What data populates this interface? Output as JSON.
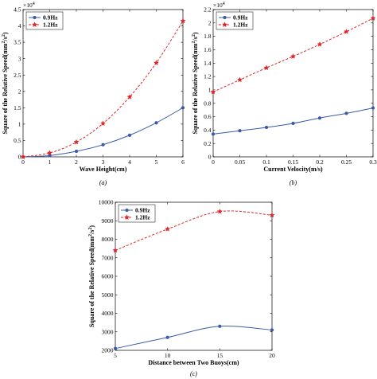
{
  "chart_data": [
    {
      "type": "line",
      "caption": "(a)",
      "xlabel": "Wave Height(cm)",
      "ylabel": "Square of the Relative Speed(mm²/s²)",
      "ylabel_main": "Square of the Relative Speed(mm",
      "ylabel_sup1": "2",
      "ylabel_mid": "/s",
      "ylabel_sup2": "2",
      "ylabel_end": ")",
      "multiplier_base": "×10",
      "multiplier_exp": "4",
      "xlim": [
        0,
        6
      ],
      "ylim": [
        0,
        4.5
      ],
      "xticks": [
        0,
        1,
        2,
        3,
        4,
        5,
        6
      ],
      "xtick_labels": [
        "0",
        "1",
        "2",
        "3",
        "4",
        "5",
        "6"
      ],
      "yticks": [
        0,
        0.5,
        1,
        1.5,
        2,
        2.5,
        3,
        3.5,
        4,
        4.5
      ],
      "ytick_labels": [
        "0",
        "0.5",
        "1",
        "1.5",
        "2",
        "2.5",
        "3",
        "3.5",
        "4",
        "4.5"
      ],
      "x": [
        0,
        1,
        2,
        3,
        4,
        5,
        6
      ],
      "legend_position": "top-left",
      "series": [
        {
          "name": "0.9Hz",
          "values": [
            0,
            0.04,
            0.17,
            0.37,
            0.66,
            1.04,
            1.5
          ],
          "color": "#3b5ba7",
          "marker": "dot",
          "dash": false
        },
        {
          "name": "1.2Hz",
          "values": [
            0,
            0.12,
            0.45,
            1.02,
            1.83,
            2.87,
            4.15
          ],
          "color": "#e0262a",
          "marker": "star",
          "dash": true
        }
      ]
    },
    {
      "type": "line",
      "caption": "(b)",
      "xlabel": "Current Velocity(m/s)",
      "ylabel": "Square of the Relative Speed(mm²/s²)",
      "ylabel_main": "Square of the Relative Speed(mm",
      "ylabel_sup1": "2",
      "ylabel_mid": "/s",
      "ylabel_sup2": "2",
      "ylabel_end": ")",
      "multiplier_base": "×10",
      "multiplier_exp": "4",
      "xlim": [
        0,
        0.3
      ],
      "ylim": [
        0,
        2.2
      ],
      "xticks": [
        0,
        0.05,
        0.1,
        0.15,
        0.2,
        0.25,
        0.3
      ],
      "xtick_labels": [
        "0",
        "0.05",
        "0.1",
        "0.15",
        "0.2",
        "0.25",
        "0.3"
      ],
      "yticks": [
        0,
        0.2,
        0.4,
        0.6,
        0.8,
        1,
        1.2,
        1.4,
        1.6,
        1.8,
        2,
        2.2
      ],
      "ytick_labels": [
        "0",
        "0.2",
        "0.4",
        "0.6",
        "0.8",
        "1",
        "1.2",
        "1.4",
        "1.6",
        "1.8",
        "2",
        "2.2"
      ],
      "x": [
        0,
        0.05,
        0.1,
        0.15,
        0.2,
        0.25,
        0.3
      ],
      "legend_position": "top-left",
      "series": [
        {
          "name": "0.9Hz",
          "values": [
            0.34,
            0.39,
            0.44,
            0.5,
            0.58,
            0.65,
            0.73
          ],
          "color": "#3b5ba7",
          "marker": "dot",
          "dash": false
        },
        {
          "name": "1.2Hz",
          "values": [
            0.97,
            1.15,
            1.33,
            1.5,
            1.68,
            1.87,
            2.07
          ],
          "color": "#e0262a",
          "marker": "star",
          "dash": true
        }
      ]
    },
    {
      "type": "line",
      "caption": "(c)",
      "xlabel": "Distance between Two Buoys(cm)",
      "ylabel": "Square of the Relative Speed(mm²/s²)",
      "ylabel_main": "Square of the Relative Speed(mm",
      "ylabel_sup1": "2",
      "ylabel_mid": "/s",
      "ylabel_sup2": "2",
      "ylabel_end": ")",
      "xlim": [
        5,
        20
      ],
      "ylim": [
        2000,
        10000
      ],
      "xticks": [
        5,
        10,
        15,
        20
      ],
      "xtick_labels": [
        "5",
        "10",
        "15",
        "20"
      ],
      "yticks": [
        2000,
        3000,
        4000,
        5000,
        6000,
        7000,
        8000,
        9000,
        10000
      ],
      "ytick_labels": [
        "2000",
        "3000",
        "4000",
        "5000",
        "6000",
        "7000",
        "8000",
        "9000",
        "10000"
      ],
      "x": [
        5,
        10,
        15,
        20
      ],
      "legend_position": "top-left",
      "series": [
        {
          "name": "0.9Hz",
          "values": [
            2100,
            2700,
            3300,
            3100
          ],
          "color": "#3b5ba7",
          "marker": "dot",
          "dash": false
        },
        {
          "name": "1.2Hz",
          "values": [
            7400,
            8550,
            9500,
            9300
          ],
          "color": "#e0262a",
          "marker": "star",
          "dash": true
        }
      ]
    }
  ]
}
